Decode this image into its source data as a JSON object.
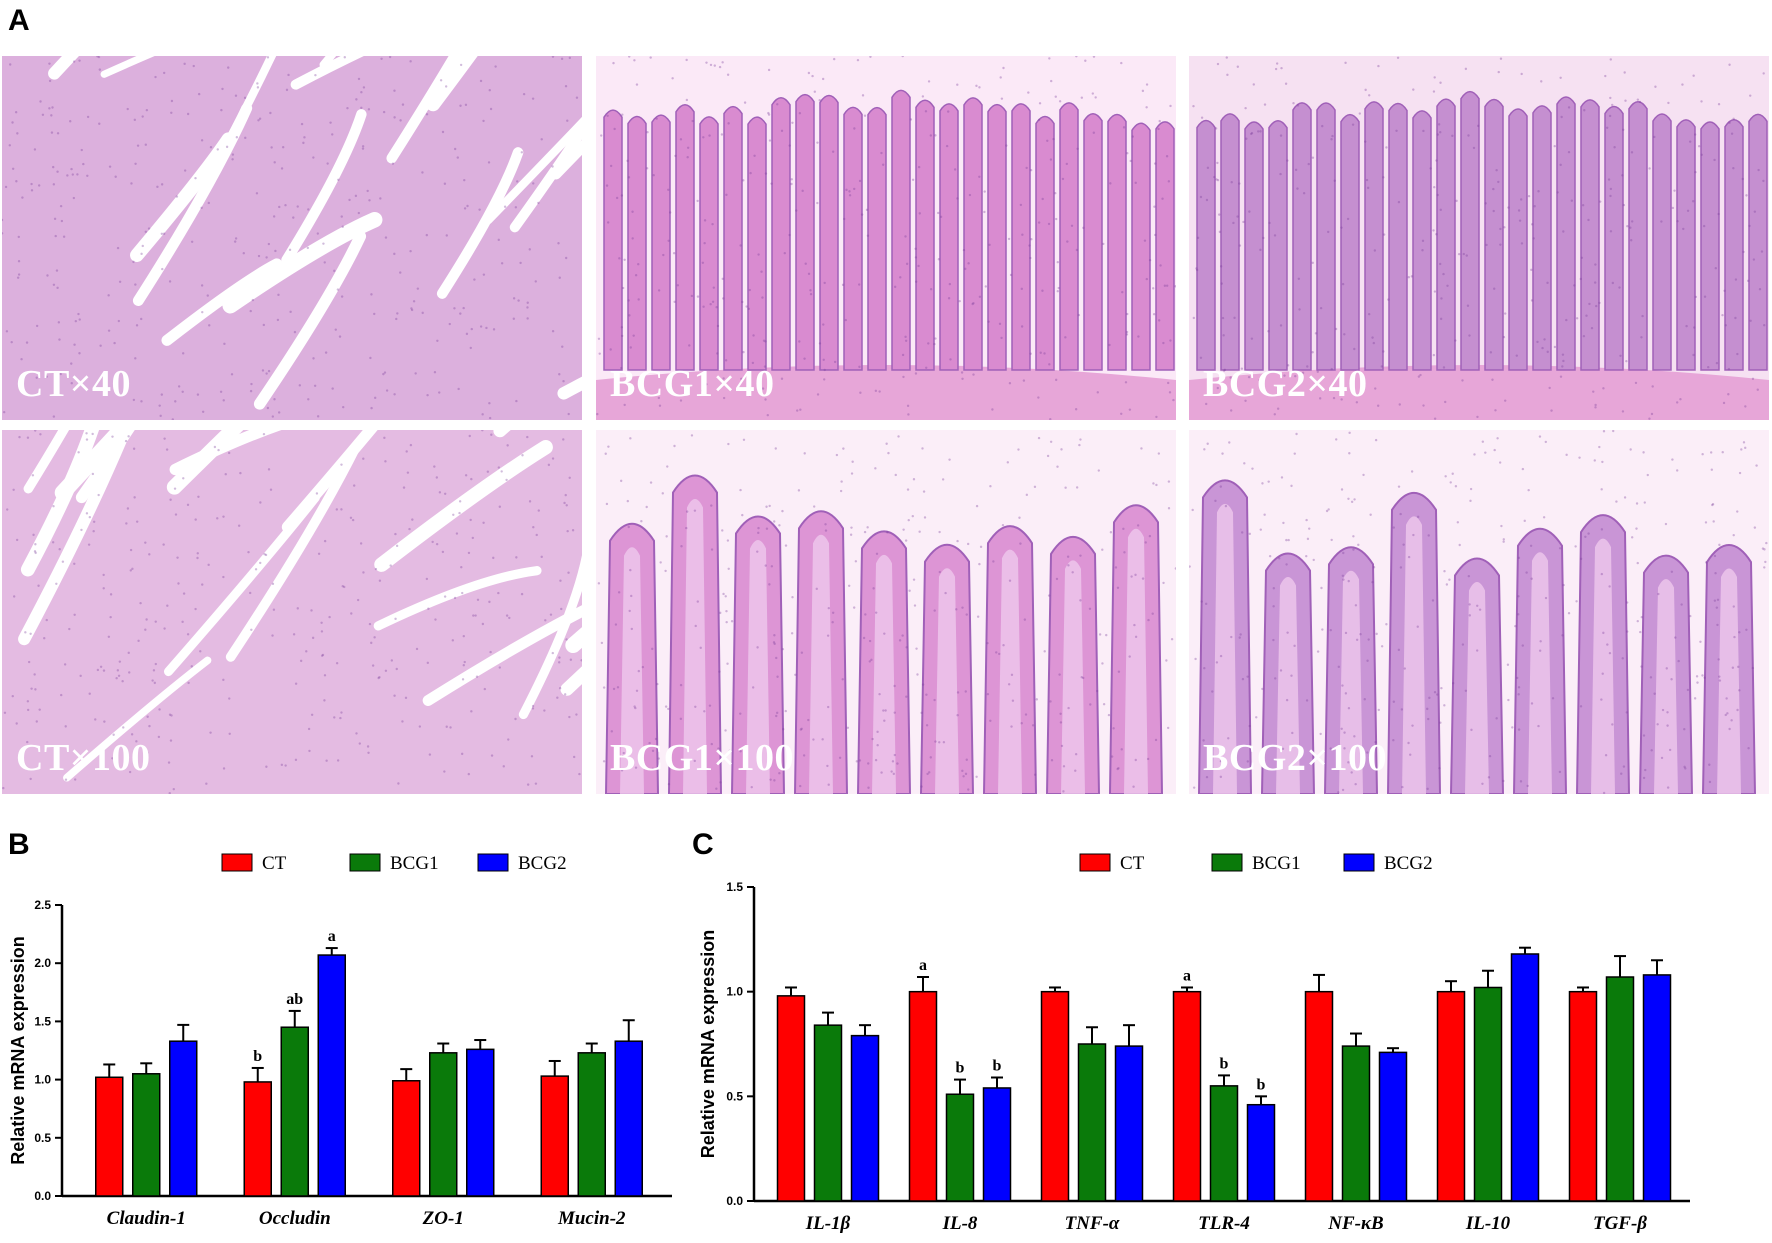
{
  "panel_letters": {
    "a": "A",
    "b": "B",
    "c": "C"
  },
  "micrographs": [
    {
      "label": "CT×40",
      "stain_bg": "#f4d7ee",
      "tissue": "#c98fcf",
      "style": "branch"
    },
    {
      "label": "BCG1×40",
      "stain_bg": "#fbe9f7",
      "tissue": "#d98bd0",
      "style": "columns"
    },
    {
      "label": "BCG2×40",
      "stain_bg": "#f6e1f2",
      "tissue": "#c58fd0",
      "style": "columns"
    },
    {
      "label": "CT×100",
      "stain_bg": "#f7e3f2",
      "tissue": "#d59ad6",
      "style": "branch"
    },
    {
      "label": "BCG1×100",
      "stain_bg": "#fbeef8",
      "tissue": "#dd95d5",
      "style": "fingers"
    },
    {
      "label": "BCG2×100",
      "stain_bg": "#fbeef8",
      "tissue": "#c995d6",
      "style": "fingers"
    }
  ],
  "chart_data": [
    {
      "type": "bar",
      "panel": "B",
      "categories": [
        "Claudin-1",
        "Occludin",
        "ZO-1",
        "Mucin-2"
      ],
      "series": [
        {
          "name": "CT",
          "color": "#ff0000",
          "values": [
            1.02,
            0.98,
            0.99,
            1.03
          ],
          "errors": [
            0.11,
            0.12,
            0.1,
            0.13
          ],
          "labels": [
            "",
            "b",
            "",
            ""
          ]
        },
        {
          "name": "BCG1",
          "color": "#0a7a0a",
          "values": [
            1.05,
            1.45,
            1.23,
            1.23
          ],
          "errors": [
            0.09,
            0.14,
            0.08,
            0.08
          ],
          "labels": [
            "",
            "ab",
            "",
            ""
          ]
        },
        {
          "name": "BCG2",
          "color": "#0000ff",
          "values": [
            1.33,
            2.07,
            1.26,
            1.33
          ],
          "errors": [
            0.14,
            0.06,
            0.08,
            0.18
          ],
          "labels": [
            "",
            "a",
            "",
            ""
          ]
        }
      ],
      "ylabel": "Relative mRNA expression",
      "ylim": [
        0,
        2.5
      ],
      "yticks": [
        "0.0",
        "0.5",
        "1.0",
        "1.5",
        "2.0",
        "2.5"
      ],
      "legend": "top-center"
    },
    {
      "type": "bar",
      "panel": "C",
      "categories": [
        "IL-1β",
        "IL-8",
        "TNF-α",
        "TLR-4",
        "NF-κB",
        "IL-10",
        "TGF-β"
      ],
      "series": [
        {
          "name": "CT",
          "color": "#ff0000",
          "values": [
            0.98,
            1.0,
            1.0,
            1.0,
            1.0,
            1.0,
            1.0
          ],
          "errors": [
            0.04,
            0.07,
            0.02,
            0.02,
            0.08,
            0.05,
            0.02
          ],
          "labels": [
            "",
            "a",
            "",
            "a",
            "",
            "",
            ""
          ]
        },
        {
          "name": "BCG1",
          "color": "#0a7a0a",
          "values": [
            0.84,
            0.51,
            0.75,
            0.55,
            0.74,
            1.02,
            1.07
          ],
          "errors": [
            0.06,
            0.07,
            0.08,
            0.05,
            0.06,
            0.08,
            0.1
          ],
          "labels": [
            "",
            "b",
            "",
            "b",
            "",
            "",
            ""
          ]
        },
        {
          "name": "BCG2",
          "color": "#0000ff",
          "values": [
            0.79,
            0.54,
            0.74,
            0.46,
            0.71,
            1.18,
            1.08
          ],
          "errors": [
            0.05,
            0.05,
            0.1,
            0.04,
            0.02,
            0.03,
            0.07
          ],
          "labels": [
            "",
            "b",
            "",
            "b",
            "",
            "",
            ""
          ]
        }
      ],
      "ylabel": "Relative mRNA expression",
      "ylim": [
        0,
        1.5
      ],
      "yticks": [
        "0.0",
        "0.5",
        "1.0",
        "1.5"
      ],
      "legend": "top-center"
    }
  ]
}
